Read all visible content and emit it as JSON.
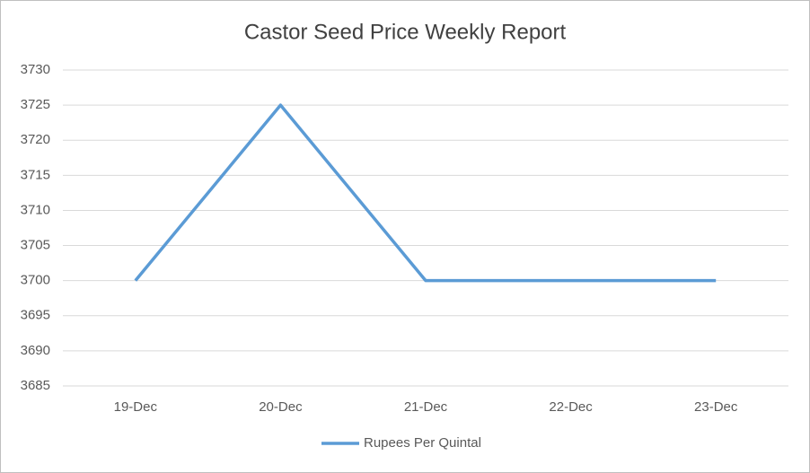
{
  "chart_data": {
    "type": "line",
    "title": "Castor Seed Price Weekly Report",
    "categories": [
      "19-Dec",
      "20-Dec",
      "21-Dec",
      "22-Dec",
      "23-Dec"
    ],
    "series": [
      {
        "name": "Rupees Per Quintal",
        "color": "#5b9bd5",
        "values": [
          3700,
          3725,
          3700,
          3700,
          3700
        ]
      }
    ],
    "ylim": [
      3685,
      3730
    ],
    "yticks": [
      3685,
      3690,
      3695,
      3700,
      3705,
      3710,
      3715,
      3720,
      3725,
      3730
    ],
    "grid": true,
    "legend": "bottom"
  }
}
